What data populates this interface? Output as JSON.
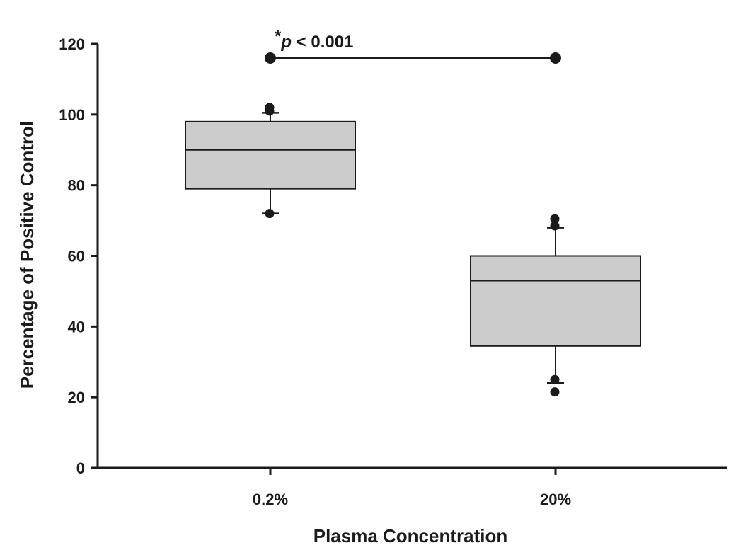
{
  "chart_data": {
    "type": "box",
    "xlabel": "Plasma Concentration",
    "ylabel": "Percentage of Positive Control",
    "ylim": [
      0,
      120
    ],
    "yticks": [
      0,
      20,
      40,
      60,
      80,
      100,
      120
    ],
    "grid": false,
    "categories": [
      "0.2%",
      "20%"
    ],
    "boxes": [
      {
        "category": "0.2%",
        "whisker_low": 72,
        "q1": 79,
        "median": 90,
        "q3": 98,
        "whisker_high": 100.5,
        "outliers": [
          72,
          101,
          102
        ]
      },
      {
        "category": "20%",
        "whisker_low": 24,
        "q1": 34.5,
        "median": 53,
        "q3": 60,
        "whisker_high": 68,
        "outliers": [
          21.5,
          25,
          68.5,
          70.5
        ]
      }
    ],
    "significance": {
      "star": "*",
      "p_letter": "p",
      "p_text": " < 0.001",
      "y": 116,
      "from": "0.2%",
      "to": "20%"
    },
    "colors": {
      "box_fill": "#cccccc",
      "line": "#1a1a1a"
    }
  }
}
